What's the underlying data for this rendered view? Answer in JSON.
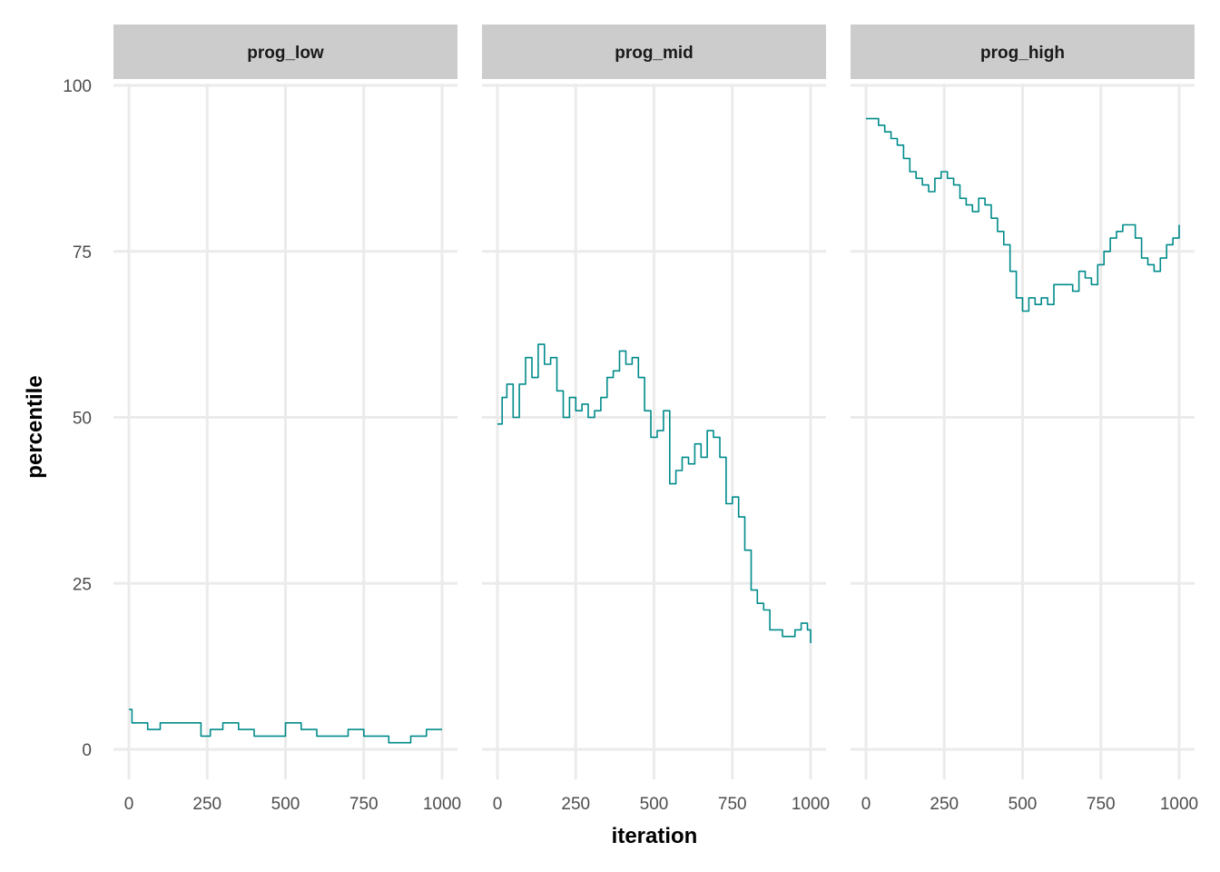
{
  "chart_data": {
    "type": "line",
    "xlabel": "iteration",
    "ylabel": "percentile",
    "xlim": [
      0,
      1000
    ],
    "ylim": [
      0,
      100
    ],
    "x_ticks": [
      0,
      250,
      500,
      750,
      1000
    ],
    "x_tick_labels": [
      "0",
      "250",
      "500",
      "750",
      "1000"
    ],
    "y_ticks": [
      0,
      25,
      50,
      75,
      100
    ],
    "y_tick_labels": [
      "0",
      "25",
      "50",
      "75",
      "100"
    ],
    "grid": true,
    "line_color": "#008b8b",
    "panels": [
      {
        "name": "prog_low",
        "x": [
          0,
          10,
          40,
          60,
          100,
          150,
          200,
          230,
          260,
          300,
          350,
          400,
          450,
          500,
          550,
          600,
          650,
          700,
          750,
          800,
          830,
          870,
          900,
          950,
          1000
        ],
        "y": [
          6,
          4,
          4,
          3,
          4,
          4,
          4,
          2,
          3,
          4,
          3,
          2,
          2,
          4,
          3,
          2,
          2,
          3,
          2,
          2,
          1,
          1,
          2,
          3,
          3
        ]
      },
      {
        "name": "prog_mid",
        "x": [
          0,
          15,
          30,
          50,
          70,
          90,
          110,
          130,
          150,
          170,
          190,
          210,
          230,
          250,
          270,
          290,
          310,
          330,
          350,
          370,
          390,
          410,
          430,
          450,
          470,
          490,
          510,
          530,
          550,
          570,
          590,
          610,
          630,
          650,
          670,
          690,
          710,
          730,
          750,
          770,
          790,
          810,
          830,
          850,
          870,
          890,
          910,
          930,
          950,
          970,
          990,
          1000
        ],
        "y": [
          49,
          53,
          55,
          50,
          55,
          59,
          56,
          61,
          58,
          59,
          54,
          50,
          53,
          51,
          52,
          50,
          51,
          53,
          56,
          57,
          60,
          58,
          59,
          56,
          51,
          47,
          48,
          51,
          40,
          42,
          44,
          43,
          46,
          44,
          48,
          47,
          44,
          37,
          38,
          35,
          30,
          24,
          22,
          21,
          18,
          18,
          17,
          17,
          18,
          19,
          18,
          16
        ]
      },
      {
        "name": "prog_high",
        "x": [
          0,
          20,
          40,
          60,
          80,
          100,
          120,
          140,
          160,
          180,
          200,
          220,
          240,
          260,
          280,
          300,
          320,
          340,
          360,
          380,
          400,
          420,
          440,
          460,
          480,
          500,
          520,
          540,
          560,
          580,
          600,
          620,
          640,
          660,
          680,
          700,
          720,
          740,
          760,
          780,
          800,
          820,
          840,
          860,
          880,
          900,
          920,
          940,
          960,
          980,
          1000
        ],
        "y": [
          95,
          95,
          94,
          93,
          92,
          91,
          89,
          87,
          86,
          85,
          84,
          86,
          87,
          86,
          85,
          83,
          82,
          81,
          83,
          82,
          80,
          78,
          76,
          72,
          68,
          66,
          68,
          67,
          68,
          67,
          70,
          70,
          70,
          69,
          72,
          71,
          70,
          73,
          75,
          77,
          78,
          79,
          79,
          77,
          74,
          73,
          72,
          74,
          76,
          77,
          79
        ]
      }
    ]
  }
}
